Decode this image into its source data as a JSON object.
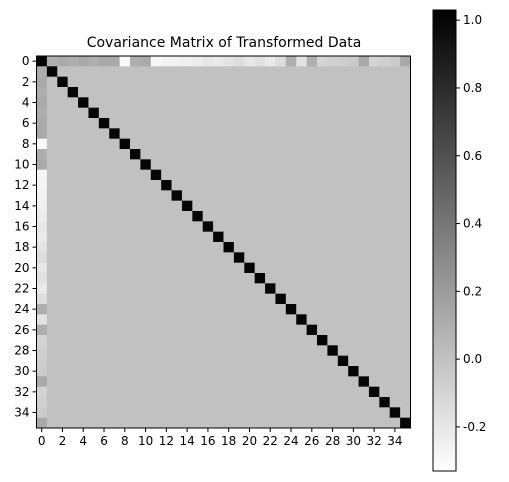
{
  "chart_data": {
    "type": "heatmap",
    "title": "Covariance Matrix of Transformed Data",
    "size": 36,
    "colormap": "gray_r",
    "vmin": -0.33,
    "vmax": 1.03,
    "diagonal_value": 1.0,
    "off_diagonal_value": 0.0,
    "first_row_values": [
      1.0,
      0.1,
      0.13,
      0.1,
      0.13,
      0.1,
      0.13,
      0.13,
      -0.3,
      0.1,
      0.13,
      -0.28,
      -0.27,
      -0.26,
      -0.25,
      -0.23,
      -0.2,
      -0.22,
      -0.18,
      -0.15,
      -0.2,
      -0.17,
      -0.22,
      -0.15,
      0.1,
      -0.18,
      0.1,
      -0.1,
      -0.08,
      -0.07,
      -0.05,
      0.13,
      -0.1,
      -0.08,
      -0.05,
      0.13
    ],
    "first_column_values": [
      1.0,
      0.1,
      0.13,
      0.1,
      0.13,
      0.1,
      0.13,
      0.13,
      -0.3,
      0.1,
      0.13,
      -0.28,
      -0.27,
      -0.26,
      -0.25,
      -0.23,
      -0.2,
      -0.22,
      -0.18,
      -0.15,
      -0.2,
      -0.17,
      -0.22,
      -0.15,
      0.1,
      -0.18,
      0.1,
      -0.1,
      -0.08,
      -0.07,
      -0.05,
      0.13,
      -0.1,
      -0.08,
      -0.05,
      0.13
    ],
    "x_ticks": [
      "0",
      "2",
      "4",
      "6",
      "8",
      "10",
      "12",
      "14",
      "16",
      "18",
      "20",
      "22",
      "24",
      "26",
      "28",
      "30",
      "32",
      "34"
    ],
    "y_ticks": [
      "0",
      "2",
      "4",
      "6",
      "8",
      "10",
      "12",
      "14",
      "16",
      "18",
      "20",
      "22",
      "24",
      "26",
      "28",
      "30",
      "32",
      "34"
    ],
    "colorbar_ticks": [
      "-0.2",
      "0.0",
      "0.2",
      "0.4",
      "0.6",
      "0.8",
      "1.0"
    ]
  }
}
